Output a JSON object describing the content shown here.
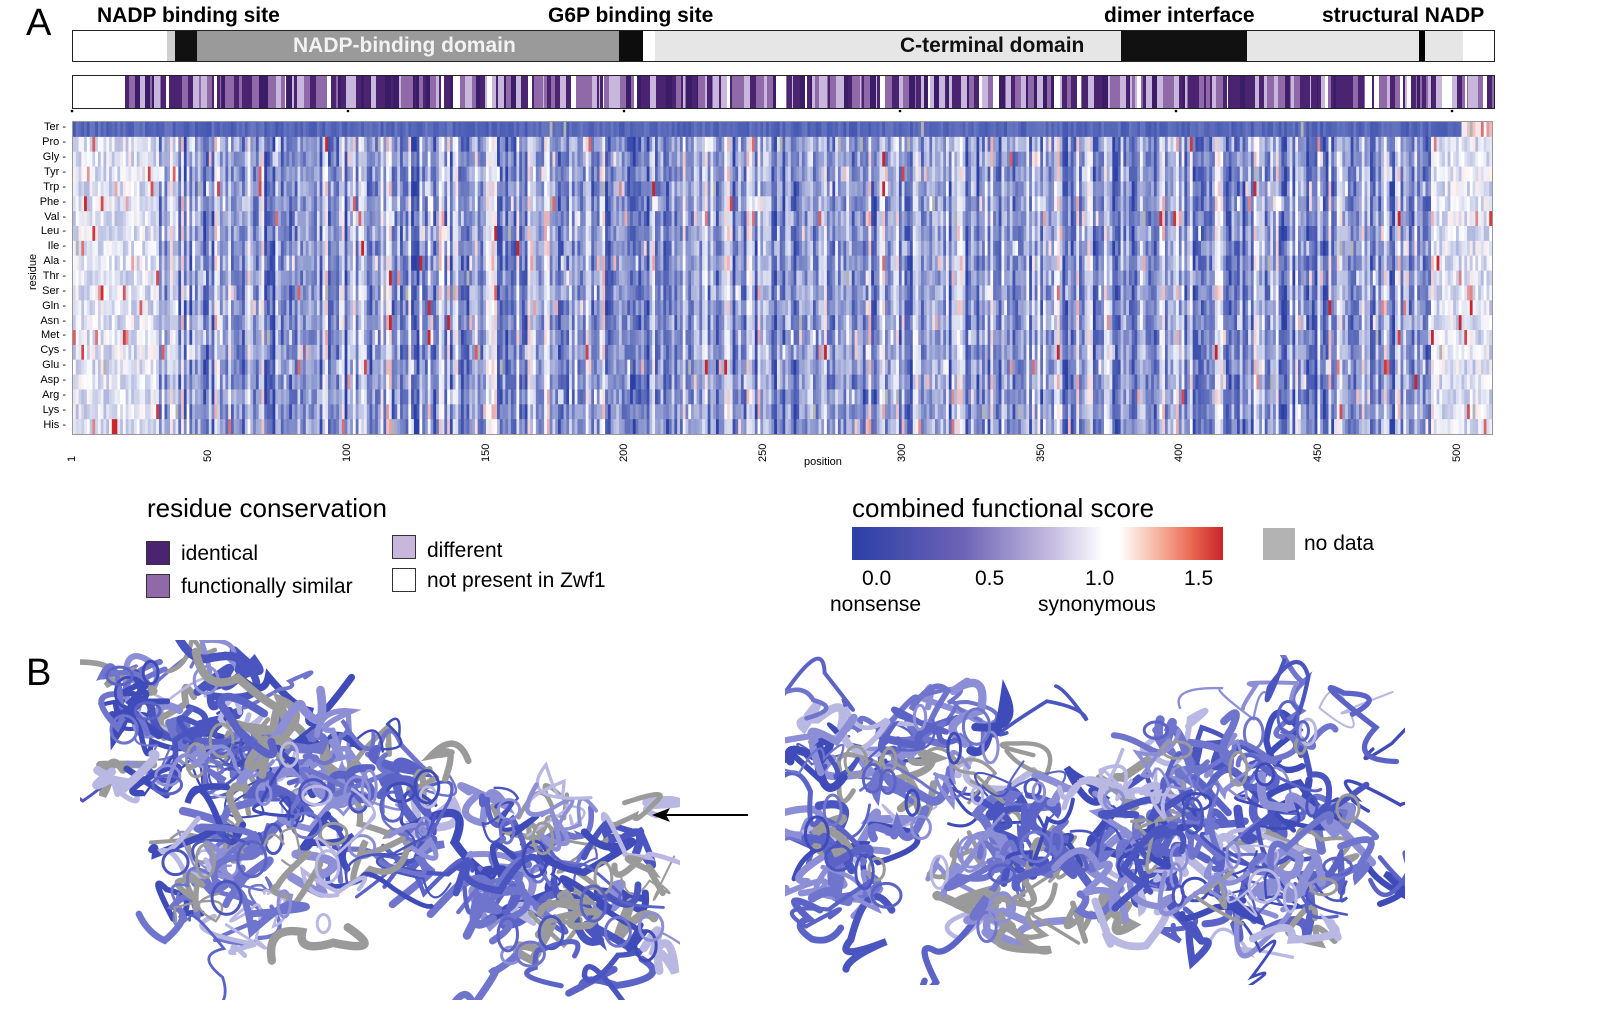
{
  "panelA": {
    "label": "A",
    "sites": [
      {
        "key": "nadp_site",
        "text": "NADP binding site"
      },
      {
        "key": "g6p_site",
        "text": "G6P binding site"
      },
      {
        "key": "dimer",
        "text": "dimer interface"
      },
      {
        "key": "structural",
        "text": "structural NADP"
      }
    ],
    "domains": {
      "nadp_domain": "NADP-binding domain",
      "cterm_domain": "C-terminal domain"
    },
    "heatmap": {
      "y_axis_title": "residue",
      "x_axis_title": "position",
      "residues": [
        "Ter",
        "Pro",
        "Gly",
        "Tyr",
        "Trp",
        "Phe",
        "Val",
        "Leu",
        "Ile",
        "Ala",
        "Thr",
        "Ser",
        "Gln",
        "Asn",
        "Met",
        "Cys",
        "Glu",
        "Asp",
        "Arg",
        "Lys",
        "His"
      ],
      "x_ticks": [
        "1",
        "50",
        "100",
        "150",
        "200",
        "250",
        "300",
        "350",
        "400",
        "450",
        "500"
      ],
      "tick_values": [
        1,
        50,
        100,
        150,
        200,
        250,
        300,
        350,
        400,
        450,
        500
      ]
    }
  },
  "legend": {
    "conservation_title": "residue conservation",
    "identical": "identical",
    "functionally_similar": "functionally similar",
    "different": "different",
    "not_present": "not present in Zwf1",
    "score_title": "combined functional score",
    "score_ticks": [
      "0.0",
      "0.5",
      "1.0",
      "1.5"
    ],
    "score_low": "nonsense",
    "score_high": "synonymous",
    "no_data": "no data",
    "colors": {
      "identical": "#4a2470",
      "functionally_similar": "#8f69a8",
      "different": "#c8b6dc",
      "not_present": "#ffffff",
      "no_data": "#b3b3b3",
      "score_low": "#2b3fa6",
      "score_mid": "#ffffff",
      "score_high": "#c8242a"
    }
  },
  "panelB": {
    "label": "B",
    "arrow_icon": "left-arrow-icon"
  }
}
